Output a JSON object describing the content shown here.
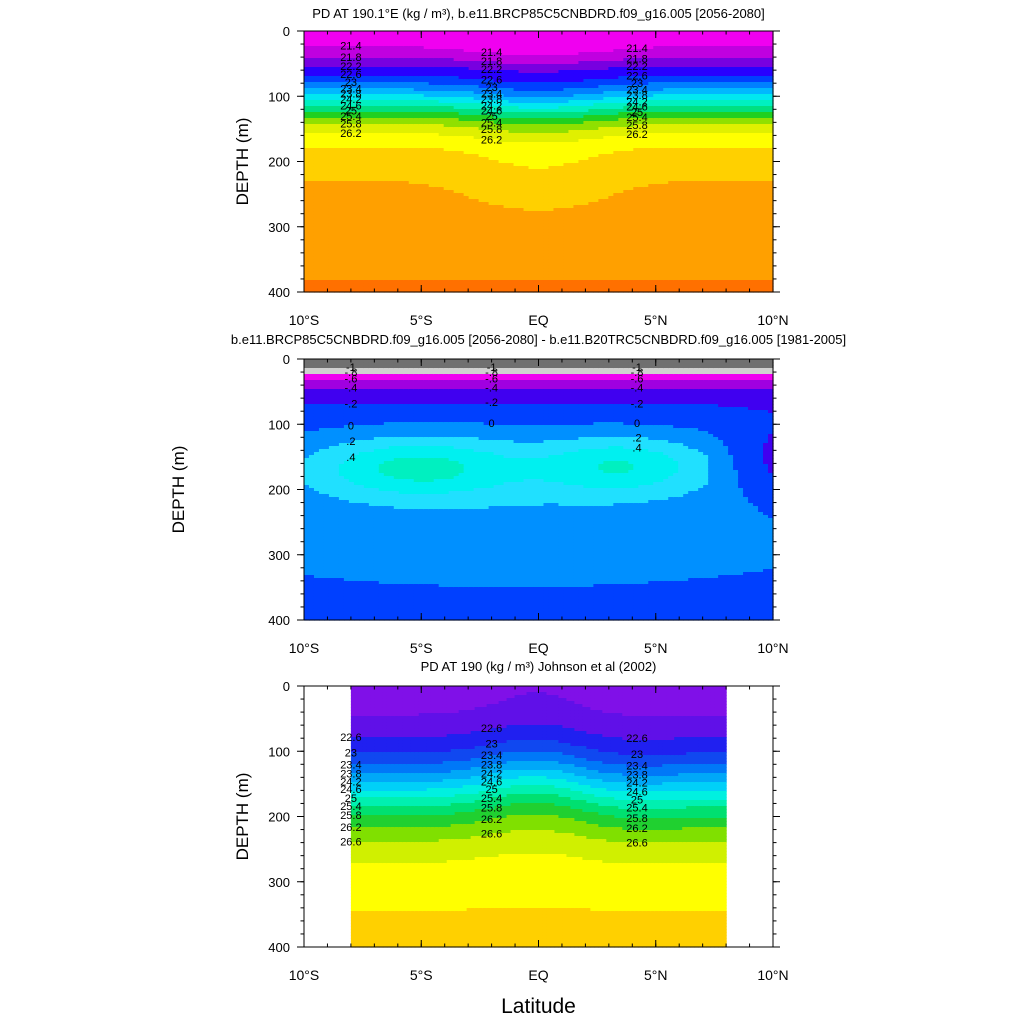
{
  "chart_data": [
    {
      "type": "contour",
      "title": "PD AT 190.1°E (kg / m³), b.e11.BRCP85C5CNBDRD.f09_g16.005 [2056-2080]",
      "ylabel": "DEPTH (m)",
      "xlabel": "",
      "x_ticks": [
        "10°S",
        "5°S",
        "EQ",
        "5°N",
        "10°N"
      ],
      "x_tick_values": [
        -10,
        -5,
        0,
        5,
        10
      ],
      "xlim": [
        -10,
        10
      ],
      "y_ticks": [
        "0",
        "100",
        "200",
        "300",
        "400"
      ],
      "y_tick_values": [
        0,
        100,
        200,
        300,
        400
      ],
      "ylim": [
        0,
        400
      ],
      "data_extent": [
        -10,
        10
      ],
      "field": "density_future",
      "contour_labels": [
        "21.4",
        "21.8",
        "22.2",
        "22.6",
        "23",
        "23.4",
        "23.8",
        "24.2",
        "24.6",
        "25",
        "25.4",
        "25.8",
        "26.2"
      ],
      "levels": [
        21.4,
        21.8,
        22.2,
        22.6,
        23.0,
        23.4,
        23.8,
        24.2,
        24.6,
        25.0,
        25.4,
        25.8,
        26.2,
        26.6
      ]
    },
    {
      "type": "contour",
      "title": "b.e11.BRCP85C5CNBDRD.f09_g16.005 [2056-2080] - b.e11.B20TRC5CNBDRD.f09_g16.005 [1981-2005]",
      "ylabel": "DEPTH (m)",
      "xlabel": "",
      "x_ticks": [
        "10°S",
        "5°S",
        "EQ",
        "5°N",
        "10°N"
      ],
      "x_tick_values": [
        -10,
        -5,
        0,
        5,
        10
      ],
      "xlim": [
        -10,
        10
      ],
      "y_ticks": [
        "0",
        "100",
        "200",
        "300",
        "400"
      ],
      "y_tick_values": [
        0,
        100,
        200,
        300,
        400
      ],
      "ylim": [
        0,
        400
      ],
      "data_extent": [
        -10,
        10
      ],
      "field": "density_difference",
      "contour_labels": [
        "-1",
        "-.8",
        "-.6",
        "-.4",
        "-.2",
        "0",
        ".2",
        ".4"
      ],
      "levels": [
        -1.0,
        -0.8,
        -0.6,
        -0.4,
        -0.2,
        0.0,
        0.2,
        0.4,
        0.6
      ]
    },
    {
      "type": "contour",
      "title": "PD AT 190 (kg / m³) Johnson et al (2002)",
      "ylabel": "DEPTH (m)",
      "xlabel": "Latitude",
      "x_ticks": [
        "10°S",
        "5°S",
        "EQ",
        "5°N",
        "10°N"
      ],
      "x_tick_values": [
        -10,
        -5,
        0,
        5,
        10
      ],
      "xlim": [
        -10,
        10
      ],
      "y_ticks": [
        "0",
        "100",
        "200",
        "300",
        "400"
      ],
      "y_tick_values": [
        0,
        100,
        200,
        300,
        400
      ],
      "ylim": [
        0,
        400
      ],
      "data_extent": [
        -8,
        8
      ],
      "field": "density_observed",
      "contour_labels": [
        "22.6",
        "23",
        "23.4",
        "23.8",
        "24.2",
        "24.6",
        "25",
        "25.4",
        "25.8",
        "26.2",
        "26.6"
      ],
      "levels": [
        22.2,
        22.6,
        23.0,
        23.4,
        23.8,
        24.2,
        24.6,
        25.0,
        25.4,
        25.8,
        26.2,
        26.6,
        27.0
      ]
    }
  ]
}
